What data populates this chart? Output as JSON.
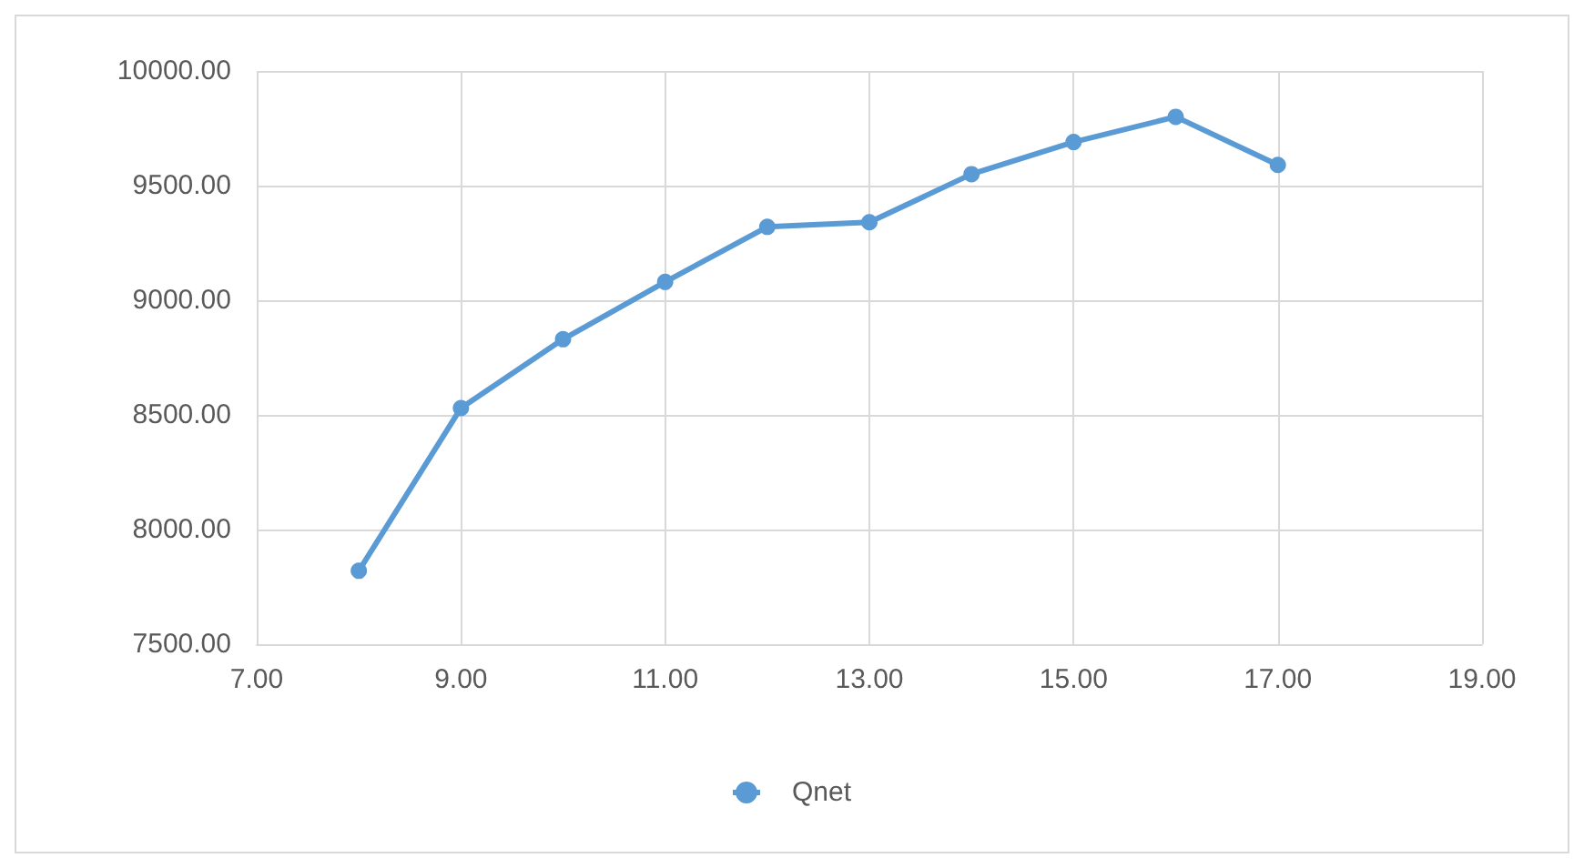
{
  "chart_data": {
    "type": "line",
    "x": [
      8,
      9,
      10,
      11,
      12,
      13,
      14,
      15,
      16,
      17
    ],
    "series": [
      {
        "name": "Qnet",
        "color": "#5b9bd5",
        "values": [
          7820,
          8530,
          8830,
          9080,
          9320,
          9340,
          9550,
          9690,
          9800,
          9590
        ]
      }
    ],
    "xlim": [
      7,
      19
    ],
    "xticks": [
      {
        "value": 7,
        "label": "7.00"
      },
      {
        "value": 9,
        "label": "9.00"
      },
      {
        "value": 11,
        "label": "11.00"
      },
      {
        "value": 13,
        "label": "13.00"
      },
      {
        "value": 15,
        "label": "15.00"
      },
      {
        "value": 17,
        "label": "17.00"
      },
      {
        "value": 19,
        "label": "19.00"
      }
    ],
    "ylim": [
      7500,
      10000
    ],
    "yticks": [
      {
        "value": 7500,
        "label": "7500.00"
      },
      {
        "value": 8000,
        "label": "8000.00"
      },
      {
        "value": 8500,
        "label": "8500.00"
      },
      {
        "value": 9000,
        "label": "9000.00"
      },
      {
        "value": 9500,
        "label": "9500.00"
      },
      {
        "value": 10000,
        "label": "10000.00"
      }
    ],
    "grid": true,
    "legend": "bottom",
    "marker": "circle",
    "line_style": "solid"
  }
}
